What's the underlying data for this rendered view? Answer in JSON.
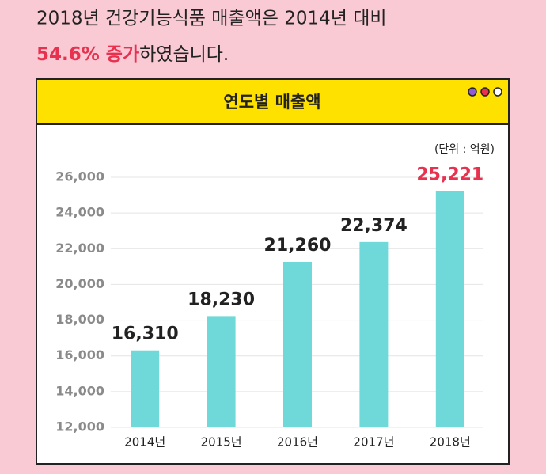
{
  "header": {
    "line1": "2018년 건강기능식품 매출액은 2014년 대비",
    "highlight": "54.6% 증가",
    "rest": "하였습니다."
  },
  "chart_data": {
    "type": "bar",
    "title": "연도별 매출액",
    "unit_label": "(단위 : 억원)",
    "categories": [
      "2014년",
      "2015년",
      "2016년",
      "2017년",
      "2018년"
    ],
    "values": [
      16310,
      18230,
      21260,
      22374,
      25221
    ],
    "value_labels": [
      "16,310",
      "18,230",
      "21,260",
      "22,374",
      "25,221"
    ],
    "value_label_colors": [
      "#222222",
      "#222222",
      "#222222",
      "#222222",
      "#e8304f"
    ],
    "color": "#6fd9d9",
    "ylim": [
      12000,
      26000
    ],
    "yticks": [
      {
        "value": 12000,
        "label": "12,000"
      },
      {
        "value": 14000,
        "label": "14,000"
      },
      {
        "value": 16000,
        "label": "16,000"
      },
      {
        "value": 18000,
        "label": "18,000"
      },
      {
        "value": 20000,
        "label": "20,000"
      },
      {
        "value": 22000,
        "label": "22,000"
      },
      {
        "value": 24000,
        "label": "24,000"
      },
      {
        "value": 26000,
        "label": "26,000"
      }
    ],
    "grid": true
  }
}
